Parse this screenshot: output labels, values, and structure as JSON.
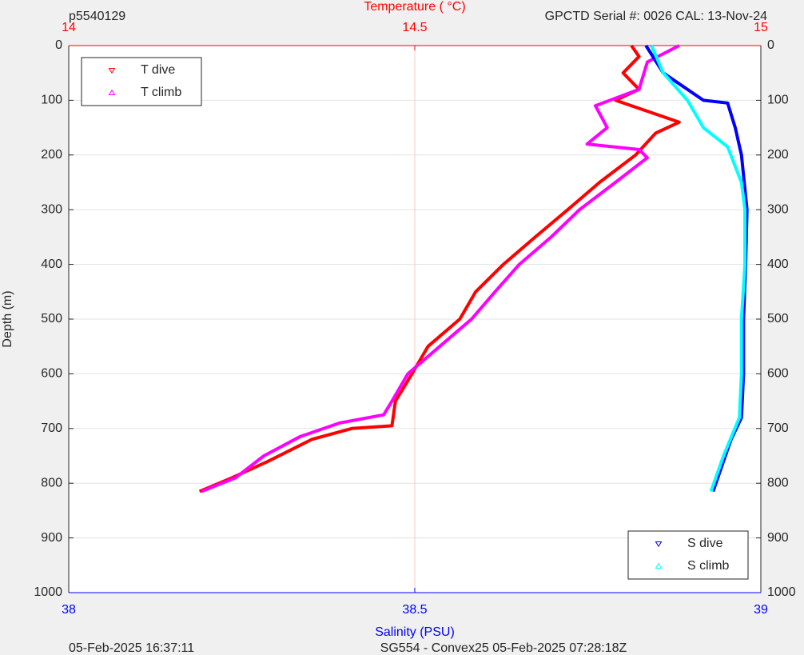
{
  "chart_data": {
    "type": "scatter",
    "header_left": "p5540129",
    "header_right": "GPCTD Serial #: 0026 CAL: 13-Nov-24",
    "x2_label": "Temperature (    °C)",
    "xlabel": "Salinity (PSU)",
    "ylabel": "Depth (m)",
    "footer_left": "05-Feb-2025 16:37:11",
    "footer_center": "SG554 - Convex25 05-Feb-2025 07:28:18Z",
    "xlim": [
      38,
      39
    ],
    "xticks": [
      38,
      38.5,
      39
    ],
    "x_color": "#0000ff",
    "x2lim": [
      14,
      15
    ],
    "x2ticks": [
      14,
      14.5,
      15
    ],
    "x2_color": "#ff0000",
    "ylim": [
      0,
      1000
    ],
    "yticks": [
      0,
      100,
      200,
      300,
      400,
      500,
      600,
      700,
      800,
      900,
      1000
    ],
    "y_inverted": true,
    "grid": true,
    "series": [
      {
        "name": "T dive",
        "color": "#ff0000",
        "axis": "x2",
        "marker": "v",
        "legend": "upper left",
        "x": [
          14.813,
          14.824,
          14.801,
          14.824,
          14.79,
          14.882,
          14.848,
          14.819,
          14.767,
          14.721,
          14.674,
          14.628,
          14.588,
          14.565,
          14.519,
          14.496,
          14.472,
          14.467,
          14.409,
          14.351,
          14.288,
          14.236,
          14.189
        ],
        "values": [
          0,
          20,
          50,
          80,
          100,
          140,
          160,
          200,
          250,
          300,
          350,
          400,
          450,
          500,
          550,
          600,
          650,
          695,
          700,
          720,
          760,
          790,
          815
        ]
      },
      {
        "name": "T climb",
        "color": "#ff00ff",
        "axis": "x2",
        "marker": "^",
        "legend": "upper left",
        "x": [
          14.882,
          14.836,
          14.824,
          14.761,
          14.778,
          14.749,
          14.824,
          14.836,
          14.79,
          14.738,
          14.697,
          14.651,
          14.616,
          14.582,
          14.536,
          14.49,
          14.467,
          14.455,
          14.391,
          14.334,
          14.282,
          14.241,
          14.192
        ],
        "values": [
          0,
          30,
          80,
          110,
          150,
          180,
          190,
          205,
          250,
          300,
          350,
          400,
          450,
          500,
          550,
          600,
          650,
          675,
          690,
          715,
          750,
          790,
          815
        ]
      },
      {
        "name": "S dive",
        "color": "#0000ff",
        "marker": "v",
        "legend": "lower right",
        "x": [
          38.834,
          38.859,
          38.917,
          38.952,
          38.963,
          38.972,
          38.98,
          38.978,
          38.975,
          38.975,
          38.972,
          38.957,
          38.946,
          38.931
        ],
        "values": [
          0,
          50,
          100,
          105,
          150,
          200,
          300,
          400,
          500,
          600,
          680,
          720,
          760,
          815
        ]
      },
      {
        "name": "S climb",
        "color": "#00ffff",
        "marker": "^",
        "legend": "lower right",
        "x": [
          38.842,
          38.859,
          38.894,
          38.917,
          38.952,
          38.972,
          38.977,
          38.977,
          38.972,
          38.972,
          38.969,
          38.946,
          38.928
        ],
        "values": [
          0,
          50,
          100,
          150,
          185,
          250,
          300,
          400,
          500,
          600,
          680,
          750,
          815
        ]
      }
    ]
  }
}
